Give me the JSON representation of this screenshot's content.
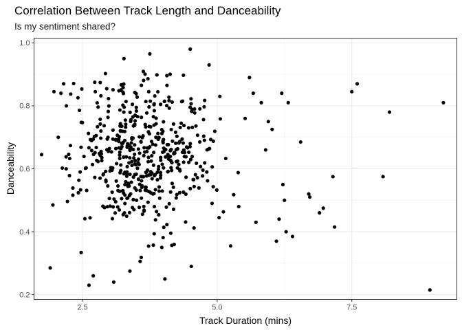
{
  "chart_data": {
    "type": "scatter",
    "title": "Correlation Between Track Length and Danceability",
    "subtitle": "Is my sentiment shared?",
    "xlabel": "Track Duration (mins)",
    "ylabel": "Danceability",
    "xlim": [
      1.6,
      9.45
    ],
    "ylim": [
      0.185,
      1.015
    ],
    "xticks": [
      2.5,
      5.0,
      7.5
    ],
    "xtick_labels": [
      "2.5",
      "5.0",
      "7.5"
    ],
    "yticks": [
      0.2,
      0.4,
      0.6,
      0.8,
      1.0
    ],
    "ytick_labels": [
      "0.2",
      "0.4",
      "0.6",
      "0.8",
      "1.0"
    ],
    "grid": true,
    "point_color": "#000000",
    "outliers": [
      {
        "x": 1.74,
        "y": 0.645
      },
      {
        "x": 1.9,
        "y": 0.285
      },
      {
        "x": 1.95,
        "y": 0.485
      },
      {
        "x": 1.97,
        "y": 0.845
      },
      {
        "x": 2.05,
        "y": 0.7
      },
      {
        "x": 2.1,
        "y": 0.84
      },
      {
        "x": 2.15,
        "y": 0.87
      },
      {
        "x": 2.2,
        "y": 0.8
      },
      {
        "x": 2.62,
        "y": 0.23
      },
      {
        "x": 2.7,
        "y": 0.26
      },
      {
        "x": 3.08,
        "y": 0.24
      },
      {
        "x": 3.38,
        "y": 0.275
      },
      {
        "x": 3.75,
        "y": 0.965
      },
      {
        "x": 4.5,
        "y": 0.98
      },
      {
        "x": 4.52,
        "y": 0.29
      },
      {
        "x": 4.03,
        "y": 0.25
      },
      {
        "x": 3.27,
        "y": 0.95
      },
      {
        "x": 4.85,
        "y": 0.93
      },
      {
        "x": 5.05,
        "y": 0.83
      },
      {
        "x": 5.25,
        "y": 0.355
      },
      {
        "x": 5.4,
        "y": 0.48
      },
      {
        "x": 5.52,
        "y": 0.76
      },
      {
        "x": 5.6,
        "y": 0.89
      },
      {
        "x": 5.67,
        "y": 0.84
      },
      {
        "x": 5.72,
        "y": 0.43
      },
      {
        "x": 5.82,
        "y": 0.81
      },
      {
        "x": 5.9,
        "y": 0.66
      },
      {
        "x": 5.95,
        "y": 0.75
      },
      {
        "x": 6.02,
        "y": 0.725
      },
      {
        "x": 6.1,
        "y": 0.37
      },
      {
        "x": 6.15,
        "y": 0.44
      },
      {
        "x": 6.2,
        "y": 0.84
      },
      {
        "x": 6.22,
        "y": 0.55
      },
      {
        "x": 6.25,
        "y": 0.5
      },
      {
        "x": 6.28,
        "y": 0.4
      },
      {
        "x": 6.32,
        "y": 0.81
      },
      {
        "x": 6.4,
        "y": 0.385
      },
      {
        "x": 6.55,
        "y": 0.685
      },
      {
        "x": 6.7,
        "y": 0.52
      },
      {
        "x": 6.72,
        "y": 0.51
      },
      {
        "x": 6.9,
        "y": 0.46
      },
      {
        "x": 6.97,
        "y": 0.475
      },
      {
        "x": 7.15,
        "y": 0.575
      },
      {
        "x": 7.18,
        "y": 0.415
      },
      {
        "x": 7.5,
        "y": 0.845
      },
      {
        "x": 7.6,
        "y": 0.87
      },
      {
        "x": 8.08,
        "y": 0.575
      },
      {
        "x": 8.2,
        "y": 0.78
      },
      {
        "x": 8.95,
        "y": 0.215
      },
      {
        "x": 9.2,
        "y": 0.81
      }
    ],
    "cluster_summary": {
      "points": 500,
      "x_mean": 3.65,
      "x_sd": 0.62,
      "x_min": 2.05,
      "x_max": 5.4,
      "y_mean": 0.645,
      "y_sd": 0.13,
      "y_min": 0.3,
      "y_max": 0.91
    }
  }
}
